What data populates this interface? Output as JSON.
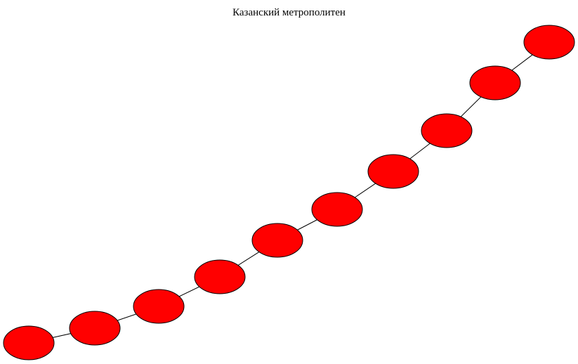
{
  "diagram": {
    "title": "Казанский метрополитен",
    "node_count": 10,
    "node_fill": "#ff0000",
    "node_stroke": "#000000",
    "edge_color": "#000000",
    "layout": "chain (path graph), bottom-left to top-right"
  }
}
